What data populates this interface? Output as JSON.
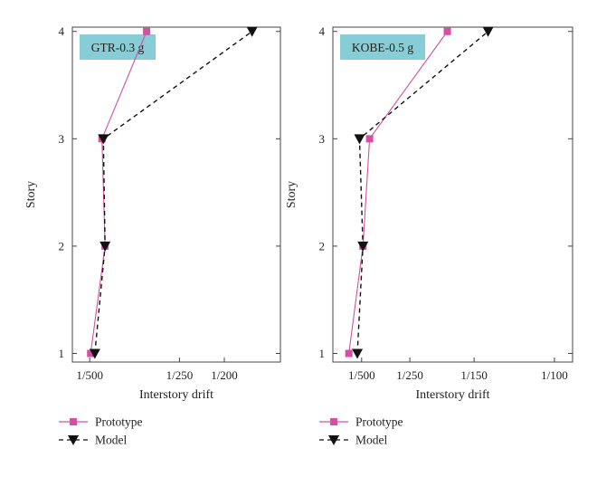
{
  "figure": {
    "legend_placement": "bottom-left",
    "colors": {
      "prototype": "#d44fa6",
      "model": "#111111",
      "panel_label_bg": "#86cdd6",
      "axis": "#444444"
    }
  },
  "chart_data": [
    {
      "type": "line",
      "panel_label": "GTR-0.3 g",
      "xlabel": "Interstory drift",
      "ylabel": "Story",
      "x_scale": "reciprocal",
      "xlim": [
        "1/620",
        "1/160"
      ],
      "ylim": [
        0.92,
        4.04
      ],
      "x_ticks": [
        "1/500",
        "1/250",
        "1/200"
      ],
      "y_ticks": [
        "1",
        "2",
        "3",
        "4"
      ],
      "grid": false,
      "series": [
        {
          "name": "Prototype",
          "style": "solid",
          "marker": "square",
          "y": [
            1,
            2,
            3,
            4
          ],
          "x": [
            "1/495",
            "1/427",
            "1/440",
            "1/306"
          ]
        },
        {
          "name": "Model",
          "style": "dashed",
          "marker": "triangle-down",
          "y": [
            1,
            2,
            3,
            4
          ],
          "x": [
            "1/473",
            "1/427",
            "1/434",
            "1/178"
          ]
        }
      ]
    },
    {
      "type": "line",
      "panel_label": "KOBE-0.5 g",
      "xlabel": "Interstory drift",
      "ylabel": "Story",
      "x_scale": "reciprocal",
      "xlim": [
        "1/1240",
        "1/93"
      ],
      "ylim": [
        0.92,
        4.04
      ],
      "x_ticks": [
        "1/500",
        "1/250",
        "1/150",
        "1/100"
      ],
      "y_ticks": [
        "1",
        "2",
        "3",
        "4"
      ],
      "grid": false,
      "series": [
        {
          "name": "Prototype",
          "style": "solid",
          "marker": "square",
          "y": [
            1,
            2,
            3,
            4
          ],
          "x": [
            "1/680",
            "1/487",
            "1/429",
            "1/180"
          ]
        },
        {
          "name": "Model",
          "style": "dashed",
          "marker": "triangle-down",
          "y": [
            1,
            2,
            3,
            4
          ],
          "x": [
            "1/549",
            "1/487",
            "1/523",
            "1/138"
          ]
        }
      ]
    }
  ]
}
